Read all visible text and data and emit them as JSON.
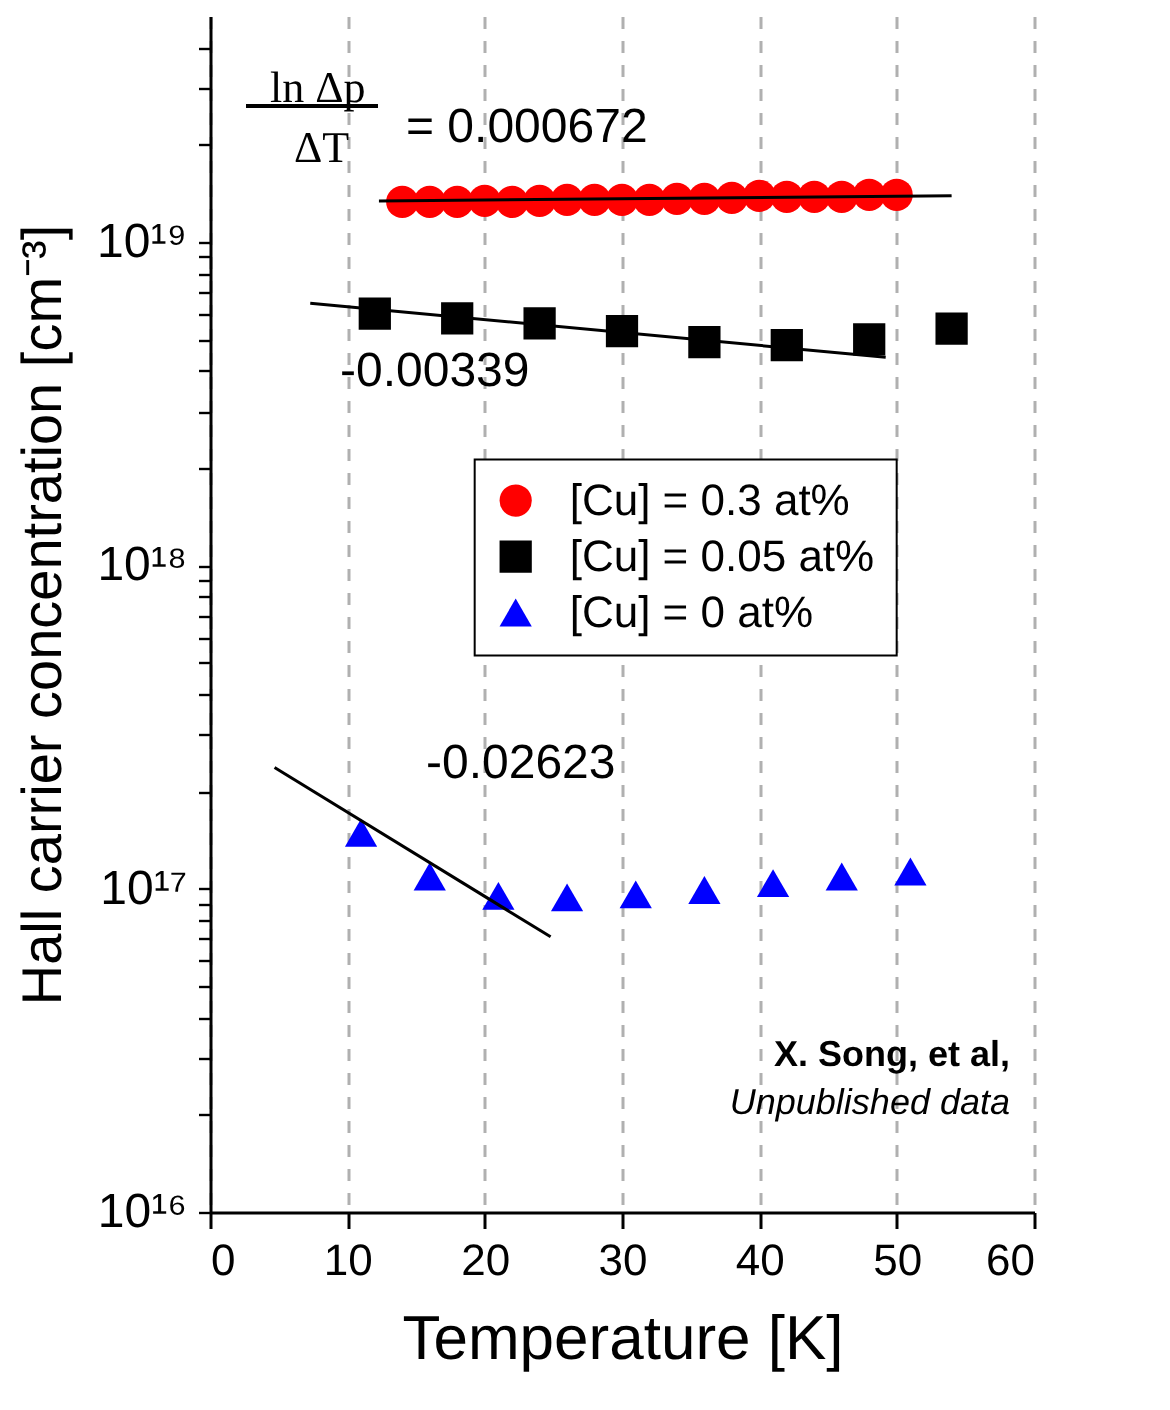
{
  "chart_data": {
    "type": "scatter",
    "xlabel": "Temperature [K]",
    "ylabel": "Hall carrier concentration [cm⁻³]",
    "xlim": [
      0,
      60
    ],
    "xticks": [
      0,
      10,
      20,
      30,
      40,
      50,
      60
    ],
    "ylim": [
      1e+16,
      5e+19
    ],
    "yticks": [
      {
        "value": 1e+16,
        "label": "10¹⁶"
      },
      {
        "value": 2e+16,
        "label": null
      },
      {
        "value": 3e+16,
        "label": null
      },
      {
        "value": 4e+16,
        "label": null
      },
      {
        "value": 5e+16,
        "label": null
      },
      {
        "value": 6e+16,
        "label": null
      },
      {
        "value": 7e+16,
        "label": null
      },
      {
        "value": 8e+16,
        "label": null
      },
      {
        "value": 9e+16,
        "label": null
      },
      {
        "value": 1e+17,
        "label": "10¹⁷"
      },
      {
        "value": 2e+17,
        "label": null
      },
      {
        "value": 3e+17,
        "label": null
      },
      {
        "value": 4e+17,
        "label": null
      },
      {
        "value": 5e+17,
        "label": null
      },
      {
        "value": 6e+17,
        "label": null
      },
      {
        "value": 7e+17,
        "label": null
      },
      {
        "value": 8e+17,
        "label": null
      },
      {
        "value": 9e+17,
        "label": null
      },
      {
        "value": 1e+18,
        "label": "10¹⁸"
      },
      {
        "value": 2e+18,
        "label": null
      },
      {
        "value": 3e+18,
        "label": null
      },
      {
        "value": 4e+18,
        "label": null
      },
      {
        "value": 5e+18,
        "label": null
      },
      {
        "value": 6e+18,
        "label": null
      },
      {
        "value": 7e+18,
        "label": null
      },
      {
        "value": 8e+18,
        "label": null
      },
      {
        "value": 9e+18,
        "label": null
      },
      {
        "value": 1e+19,
        "label": "10¹⁹"
      },
      {
        "value": 2e+19,
        "label": null
      },
      {
        "value": 3e+19,
        "label": null
      },
      {
        "value": 4e+19,
        "label": null
      }
    ],
    "log": "y",
    "grid": "x",
    "legend": "right",
    "series": [
      {
        "name": "[Cu] = 0.3 at%",
        "marker": "circle",
        "color": "#ff0000",
        "x": [
          14,
          16,
          18,
          20,
          22,
          24,
          26,
          28,
          30,
          32,
          34,
          36,
          38,
          40,
          42,
          44,
          46,
          48,
          50
        ],
        "values": [
          1.33e+19,
          1.33e+19,
          1.33e+19,
          1.34e+19,
          1.33e+19,
          1.34e+19,
          1.35e+19,
          1.35e+19,
          1.35e+19,
          1.35e+19,
          1.36e+19,
          1.36e+19,
          1.37e+19,
          1.39e+19,
          1.38e+19,
          1.38e+19,
          1.38e+19,
          1.4e+19,
          1.4e+19
        ]
      },
      {
        "name": "[Cu] = 0.05 at%",
        "marker": "square",
        "color": "#000000",
        "x": [
          12,
          18,
          24,
          30,
          36,
          42,
          48,
          54
        ],
        "values": [
          6e+18,
          5.8e+18,
          5.6e+18,
          5.3e+18,
          4.9e+18,
          4.8e+18,
          5e+18,
          5.4e+18
        ]
      },
      {
        "name": "[Cu] = 0 at%",
        "marker": "triangle",
        "color": "#0000ff",
        "x": [
          11,
          16,
          21,
          26,
          31,
          36,
          41,
          46,
          51
        ],
        "values": [
          1.49e+17,
          1.09e+17,
          9.5e+16,
          9.4e+16,
          9.6e+16,
          9.9e+16,
          1.04e+17,
          1.09e+17,
          1.13e+17
        ]
      },
      {
        "type": "line",
        "color": "#000000",
        "x": [
          12.3,
          54
        ],
        "values": [
          1.34e+19,
          1.39e+19
        ]
      },
      {
        "type": "line",
        "color": "#000000",
        "x": [
          7.3,
          49.2
        ],
        "values": [
          6.47e+18,
          4.4e+18
        ]
      },
      {
        "type": "line",
        "color": "#000000",
        "x": [
          4.7,
          24.8
        ],
        "values": [
          2.37e+17,
          7.1e+16
        ]
      }
    ],
    "annotations": [
      "ln Δp",
      "ΔT",
      "= 0.000672",
      "-0.00339",
      "-0.02623",
      "X. Song, et al,",
      "Unpublished data"
    ]
  }
}
